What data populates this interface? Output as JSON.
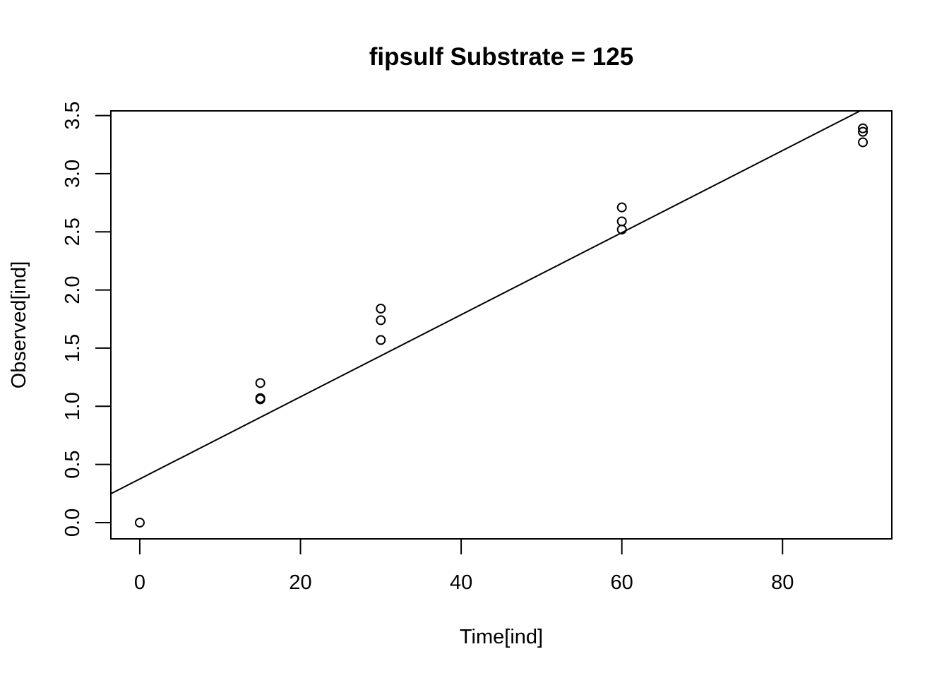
{
  "chart_data": {
    "type": "scatter",
    "title": "fipsulf Substrate = 125",
    "xlabel": "Time[ind]",
    "ylabel": "Observed[ind]",
    "xlim": [
      -3.6,
      93.6
    ],
    "ylim": [
      -0.14,
      3.54
    ],
    "x_ticks": [
      0,
      20,
      40,
      60,
      80
    ],
    "x_tick_labels": [
      "0",
      "20",
      "40",
      "60",
      "80"
    ],
    "y_ticks": [
      0,
      0.5,
      1,
      1.5,
      2,
      2.5,
      3,
      3.5
    ],
    "y_tick_labels": [
      "0.0",
      "0.5",
      "1.0",
      "1.5",
      "2.0",
      "2.5",
      "3.0",
      "3.5"
    ],
    "grid": false,
    "legend": "none",
    "points": [
      {
        "x": 0,
        "y": 0.0
      },
      {
        "x": 15,
        "y": 1.2
      },
      {
        "x": 15,
        "y": 1.07
      },
      {
        "x": 15,
        "y": 1.06
      },
      {
        "x": 30,
        "y": 1.84
      },
      {
        "x": 30,
        "y": 1.74
      },
      {
        "x": 30,
        "y": 1.57
      },
      {
        "x": 60,
        "y": 2.71
      },
      {
        "x": 60,
        "y": 2.59
      },
      {
        "x": 60,
        "y": 2.52
      },
      {
        "x": 90,
        "y": 3.39
      },
      {
        "x": 90,
        "y": 3.36
      },
      {
        "x": 90,
        "y": 3.27
      }
    ],
    "fit_line": {
      "intercept": 0.375,
      "slope": 0.0353
    }
  }
}
